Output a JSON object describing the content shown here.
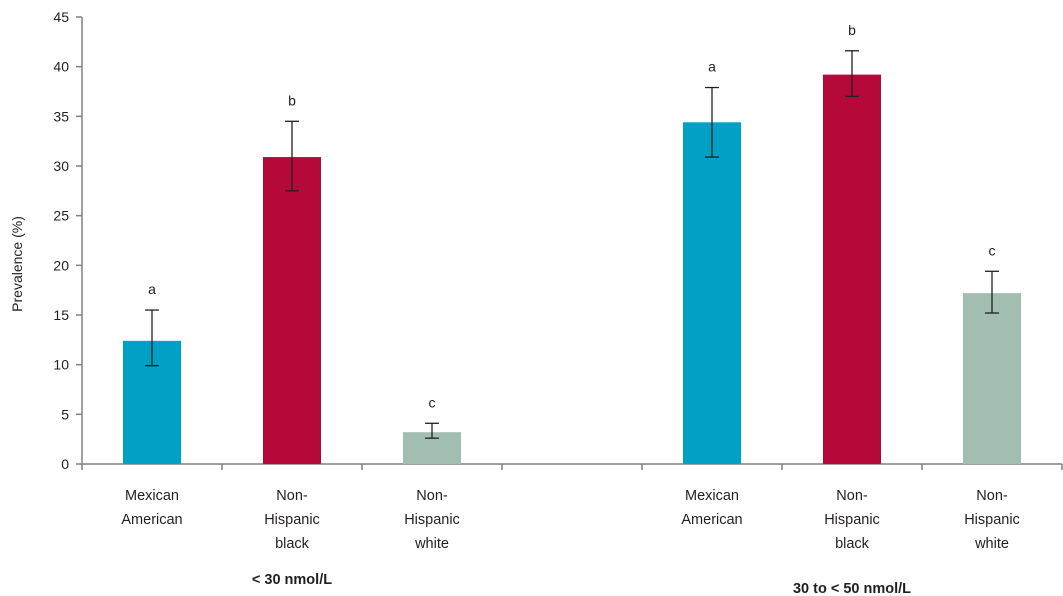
{
  "chart_data": {
    "type": "bar",
    "ylabel": "Prevalence (%)",
    "ylim": [
      0,
      45
    ],
    "yticks": [
      "0",
      "5",
      "10",
      "15",
      "20",
      "25",
      "30",
      "35",
      "40",
      "45"
    ],
    "grid": false,
    "groups": [
      {
        "label": "< 30 nmol/L",
        "bars": [
          {
            "category": [
              "Mexican",
              "American"
            ],
            "value": 12.4,
            "err_low": 9.9,
            "err_high": 15.5,
            "letter": "a",
            "color": "#00a1c4"
          },
          {
            "category": [
              "Non-",
              "Hispanic",
              "black"
            ],
            "value": 30.9,
            "err_low": 27.5,
            "err_high": 34.5,
            "letter": "b",
            "color": "#b5093a"
          },
          {
            "category": [
              "Non-",
              "Hispanic",
              "white"
            ],
            "value": 3.2,
            "err_low": 2.6,
            "err_high": 4.1,
            "letter": "c",
            "color": "#a2beb1"
          }
        ]
      },
      {
        "label": "30 to < 50 nmol/L",
        "bars": [
          {
            "category": [
              "Mexican",
              "American"
            ],
            "value": 34.4,
            "err_low": 30.9,
            "err_high": 37.9,
            "letter": "a",
            "color": "#00a1c4"
          },
          {
            "category": [
              "Non-",
              "Hispanic",
              "black"
            ],
            "value": 39.2,
            "err_low": 37.0,
            "err_high": 41.6,
            "letter": "b",
            "color": "#b5093a"
          },
          {
            "category": [
              "Non-",
              "Hispanic",
              "white"
            ],
            "value": 17.2,
            "err_low": 15.2,
            "err_high": 19.4,
            "letter": "c",
            "color": "#a2beb1"
          }
        ]
      }
    ]
  }
}
